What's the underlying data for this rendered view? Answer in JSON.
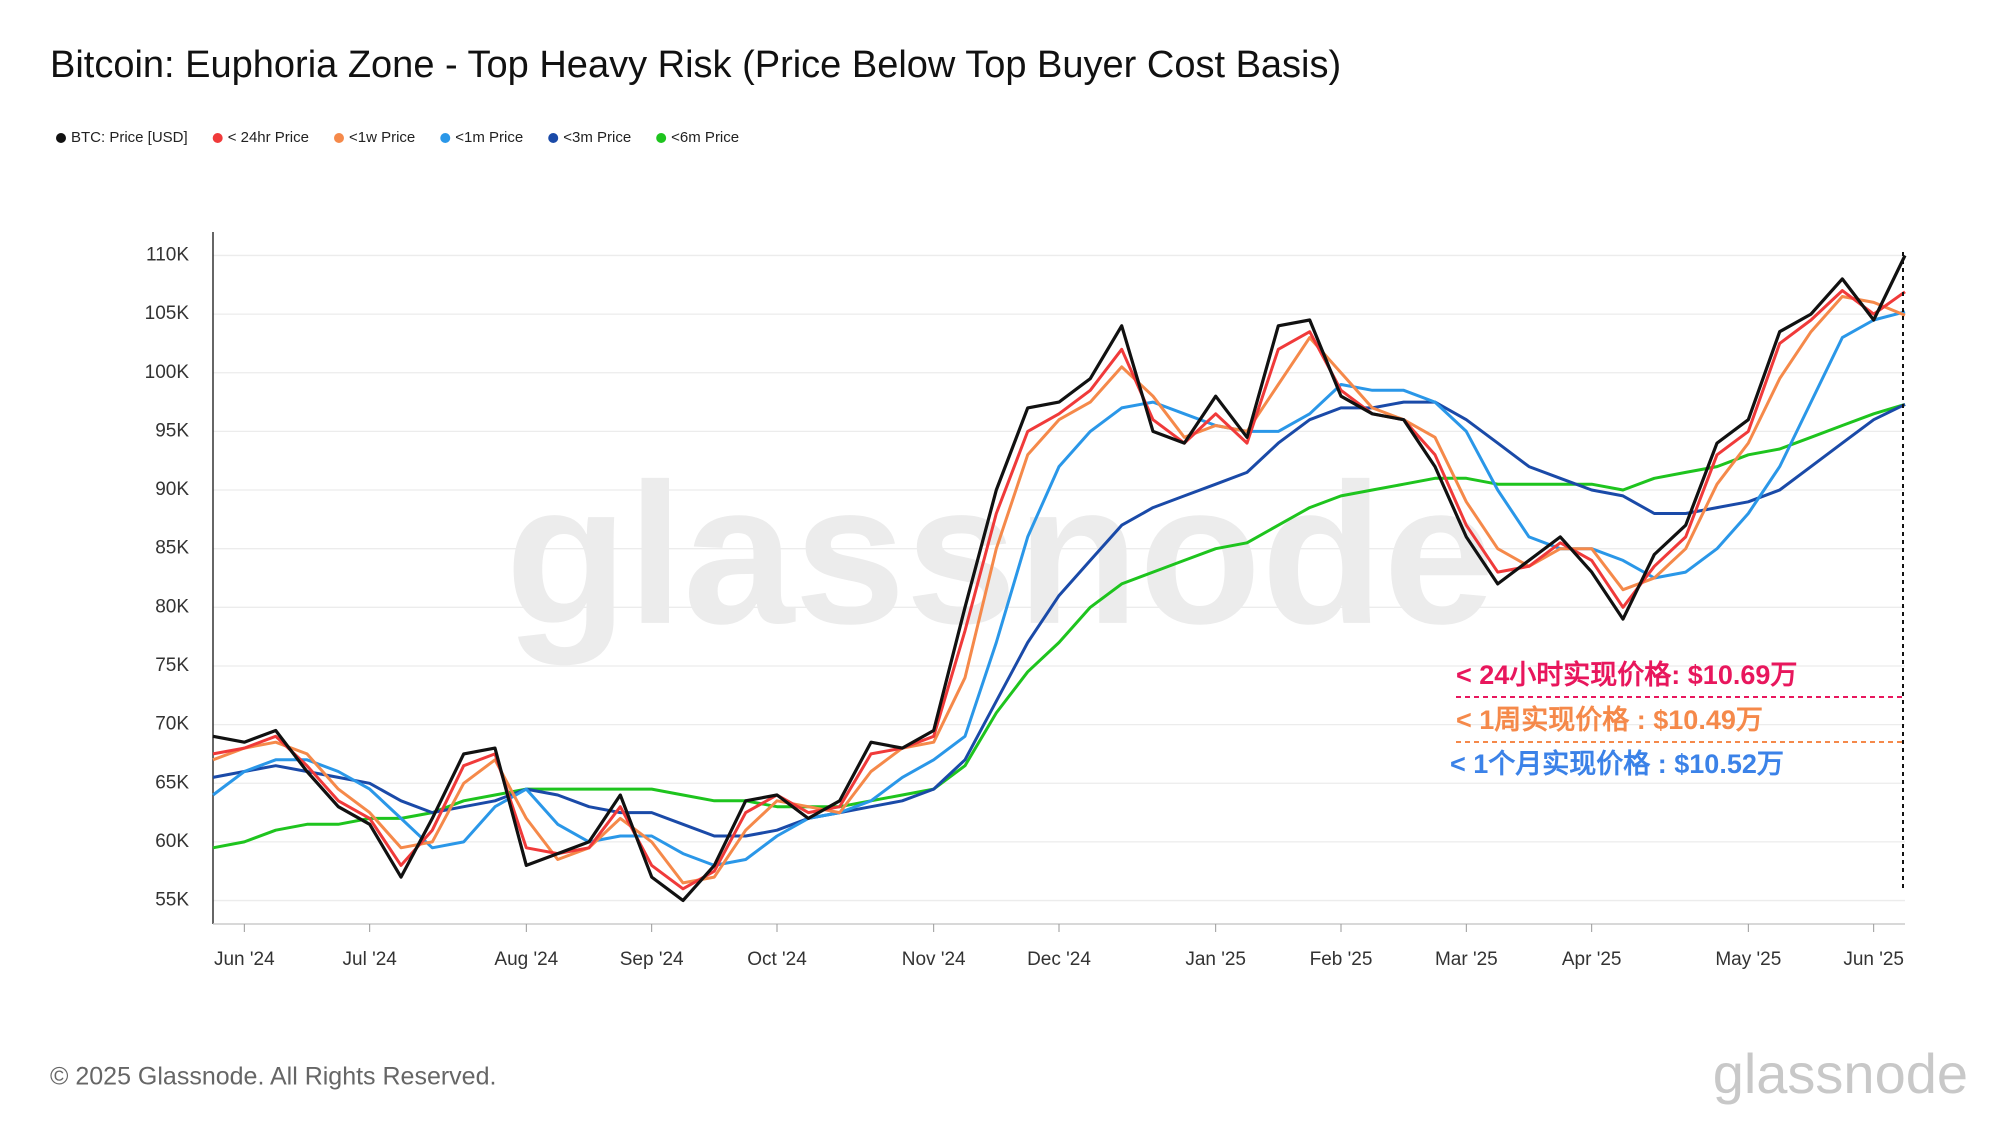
{
  "chart_data": {
    "type": "line",
    "title": "Bitcoin: Euphoria Zone - Top Heavy Risk (Price Below Top Buyer Cost Basis)",
    "footer": "© 2025 Glassnode. All Rights Reserved.",
    "watermark": "glassnode",
    "grid": true,
    "categories": [
      null,
      "Jun '24",
      null,
      null,
      null,
      "Jul '24",
      null,
      null,
      null,
      null,
      "Aug '24",
      null,
      null,
      null,
      "Sep '24",
      null,
      null,
      null,
      "Oct '24",
      null,
      null,
      null,
      null,
      "Nov '24",
      null,
      null,
      null,
      "Dec '24",
      null,
      null,
      null,
      null,
      "Jan '25",
      null,
      null,
      null,
      "Feb '25",
      null,
      null,
      null,
      "Mar '25",
      null,
      null,
      null,
      "Apr '25",
      null,
      null,
      null,
      null,
      "May '25",
      null,
      null,
      null,
      "Jun '25",
      null
    ],
    "ylim": [
      53000,
      112000
    ],
    "yticks": [
      {
        "value": 55000,
        "label": "55K"
      },
      {
        "value": 60000,
        "label": "60K"
      },
      {
        "value": 65000,
        "label": "65K"
      },
      {
        "value": 70000,
        "label": "70K"
      },
      {
        "value": 75000,
        "label": "75K"
      },
      {
        "value": 80000,
        "label": "80K"
      },
      {
        "value": 85000,
        "label": "85K"
      },
      {
        "value": 90000,
        "label": "90K"
      },
      {
        "value": 95000,
        "label": "95K"
      },
      {
        "value": 100000,
        "label": "100K"
      },
      {
        "value": 105000,
        "label": "105K"
      },
      {
        "value": 110000,
        "label": "110K"
      }
    ],
    "series": [
      {
        "name": "<6m Price",
        "color": "#1ec41e",
        "values": [
          59500,
          60000,
          61000,
          61500,
          61500,
          62000,
          62000,
          62500,
          63500,
          64000,
          64500,
          64500,
          64500,
          64500,
          64500,
          64000,
          63500,
          63500,
          63000,
          63000,
          63000,
          63500,
          64000,
          64500,
          66500,
          71000,
          74500,
          77000,
          80000,
          82000,
          83000,
          84000,
          85000,
          85500,
          87000,
          88500,
          89500,
          90000,
          90500,
          91000,
          91000,
          90500,
          90500,
          90500,
          90500,
          90000,
          91000,
          91500,
          92000,
          93000,
          93500,
          94500,
          95500,
          96500,
          97300
        ]
      },
      {
        "name": "<3m Price",
        "color": "#1a4aa8",
        "values": [
          65500,
          66000,
          66500,
          66000,
          65500,
          65000,
          63500,
          62500,
          63000,
          63500,
          64500,
          64000,
          63000,
          62500,
          62500,
          61500,
          60500,
          60500,
          61000,
          62000,
          62500,
          63000,
          63500,
          64500,
          67000,
          72000,
          77000,
          81000,
          84000,
          87000,
          88500,
          89500,
          90500,
          91500,
          94000,
          96000,
          97000,
          97000,
          97500,
          97500,
          96000,
          94000,
          92000,
          91000,
          90000,
          89500,
          88000,
          88000,
          88500,
          89000,
          90000,
          92000,
          94000,
          96000,
          97300
        ]
      },
      {
        "name": "<1m Price",
        "color": "#2a97e8",
        "values": [
          64000,
          66000,
          67000,
          67000,
          66000,
          64500,
          62000,
          59500,
          60000,
          63000,
          64500,
          61500,
          60000,
          60500,
          60500,
          59000,
          58000,
          58500,
          60500,
          62000,
          62500,
          63500,
          65500,
          67000,
          69000,
          77000,
          86000,
          92000,
          95000,
          97000,
          97500,
          96500,
          95500,
          95000,
          95000,
          96500,
          99000,
          98500,
          98500,
          97500,
          95000,
          90000,
          86000,
          85000,
          85000,
          84000,
          82500,
          83000,
          85000,
          88000,
          92000,
          97500,
          103000,
          104500,
          105200
        ]
      },
      {
        "name": "<1w Price",
        "color": "#f5894a",
        "values": [
          67000,
          68000,
          68500,
          67500,
          64500,
          62500,
          59500,
          60000,
          65000,
          67000,
          62000,
          58500,
          59500,
          62000,
          60000,
          56500,
          57000,
          61000,
          63500,
          63000,
          62500,
          66000,
          68000,
          68500,
          74000,
          85000,
          93000,
          96000,
          97500,
          100500,
          98000,
          94500,
          95500,
          95000,
          99000,
          103000,
          100000,
          97000,
          96000,
          94500,
          89000,
          85000,
          83500,
          85000,
          85000,
          81500,
          82500,
          85000,
          90500,
          94000,
          99500,
          103500,
          106500,
          106000,
          104900
        ]
      },
      {
        "name": "< 24hr Price",
        "color": "#f03a3a",
        "values": [
          67500,
          68000,
          69000,
          66500,
          63500,
          62000,
          58000,
          61000,
          66500,
          67500,
          59500,
          59000,
          59500,
          63000,
          58000,
          56000,
          57500,
          62500,
          64000,
          62500,
          63000,
          67500,
          68000,
          69000,
          78000,
          88000,
          95000,
          96500,
          98500,
          102000,
          96000,
          94000,
          96500,
          94000,
          102000,
          103500,
          98500,
          96500,
          96000,
          93000,
          87000,
          83000,
          83500,
          85500,
          84000,
          80000,
          83500,
          86000,
          93000,
          95000,
          102500,
          104500,
          107000,
          105000,
          106900
        ]
      },
      {
        "name": "BTC: Price [USD]",
        "color": "#111111",
        "values": [
          69000,
          68500,
          69500,
          66000,
          63000,
          61500,
          57000,
          62000,
          67500,
          68000,
          58000,
          59000,
          60000,
          64000,
          57000,
          55000,
          58000,
          63500,
          64000,
          62000,
          63500,
          68500,
          68000,
          69500,
          80000,
          90000,
          97000,
          97500,
          99500,
          104000,
          95000,
          94000,
          98000,
          94500,
          104000,
          104500,
          98000,
          96500,
          96000,
          92000,
          86000,
          82000,
          84000,
          86000,
          83000,
          79000,
          84500,
          87000,
          94000,
          96000,
          103500,
          105000,
          108000,
          104500,
          110000
        ]
      }
    ],
    "legend_order": [
      5,
      4,
      3,
      2,
      1,
      0
    ],
    "annotations": [
      {
        "text": "< 24小时实现价格: $10.69万",
        "color": "#e8175d",
        "line": true
      },
      {
        "text": "<  1周实现价格 : $10.49万",
        "color": "#f5894a",
        "line": true
      },
      {
        "text": "< 1个月实现价格  : $10.52万",
        "color": "#3b82e8",
        "line": false
      }
    ]
  }
}
